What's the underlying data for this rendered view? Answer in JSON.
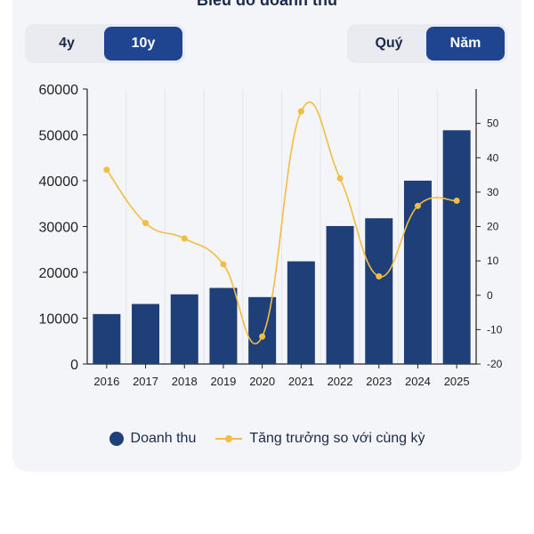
{
  "header": {
    "title": "Biểu đồ doanh thu"
  },
  "range_toggle": {
    "options": [
      "4y",
      "10y"
    ],
    "selected": "10y"
  },
  "period_toggle": {
    "options": [
      "Quý",
      "Năm"
    ],
    "selected": "Năm"
  },
  "colors": {
    "bar": "#1e3f78",
    "line": "#f2bd42",
    "active_button": "#1f4590",
    "card": "#f4f5f8"
  },
  "chart_data": {
    "type": "bar",
    "categories": [
      "2016",
      "2017",
      "2018",
      "2019",
      "2020",
      "2021",
      "2022",
      "2023",
      "2024",
      "2025"
    ],
    "series": [
      {
        "name": "Doanh thu",
        "type": "bar",
        "axis": "left",
        "values": [
          10900,
          13100,
          15200,
          16600,
          14600,
          22400,
          30100,
          31800,
          40000,
          51000
        ]
      },
      {
        "name": "Tăng trưởng so với cùng kỳ",
        "type": "line",
        "axis": "right",
        "values": [
          36.5,
          21,
          16.5,
          9,
          -12,
          53.5,
          34,
          5.5,
          26,
          27.5
        ]
      }
    ],
    "ylim_left": [
      0,
      60000
    ],
    "yticks_left": [
      "0",
      "10000",
      "20000",
      "30000",
      "40000",
      "50000",
      "60000"
    ],
    "ylim_right": [
      -20,
      60
    ],
    "yticks_right": [
      "-20",
      "-10",
      "0",
      "10",
      "20",
      "30",
      "40",
      "50"
    ],
    "grid": "vertical",
    "legend": "bottom"
  },
  "legend": {
    "bar_label": "Doanh thu",
    "line_label": "Tăng trưởng so với cùng kỳ"
  }
}
